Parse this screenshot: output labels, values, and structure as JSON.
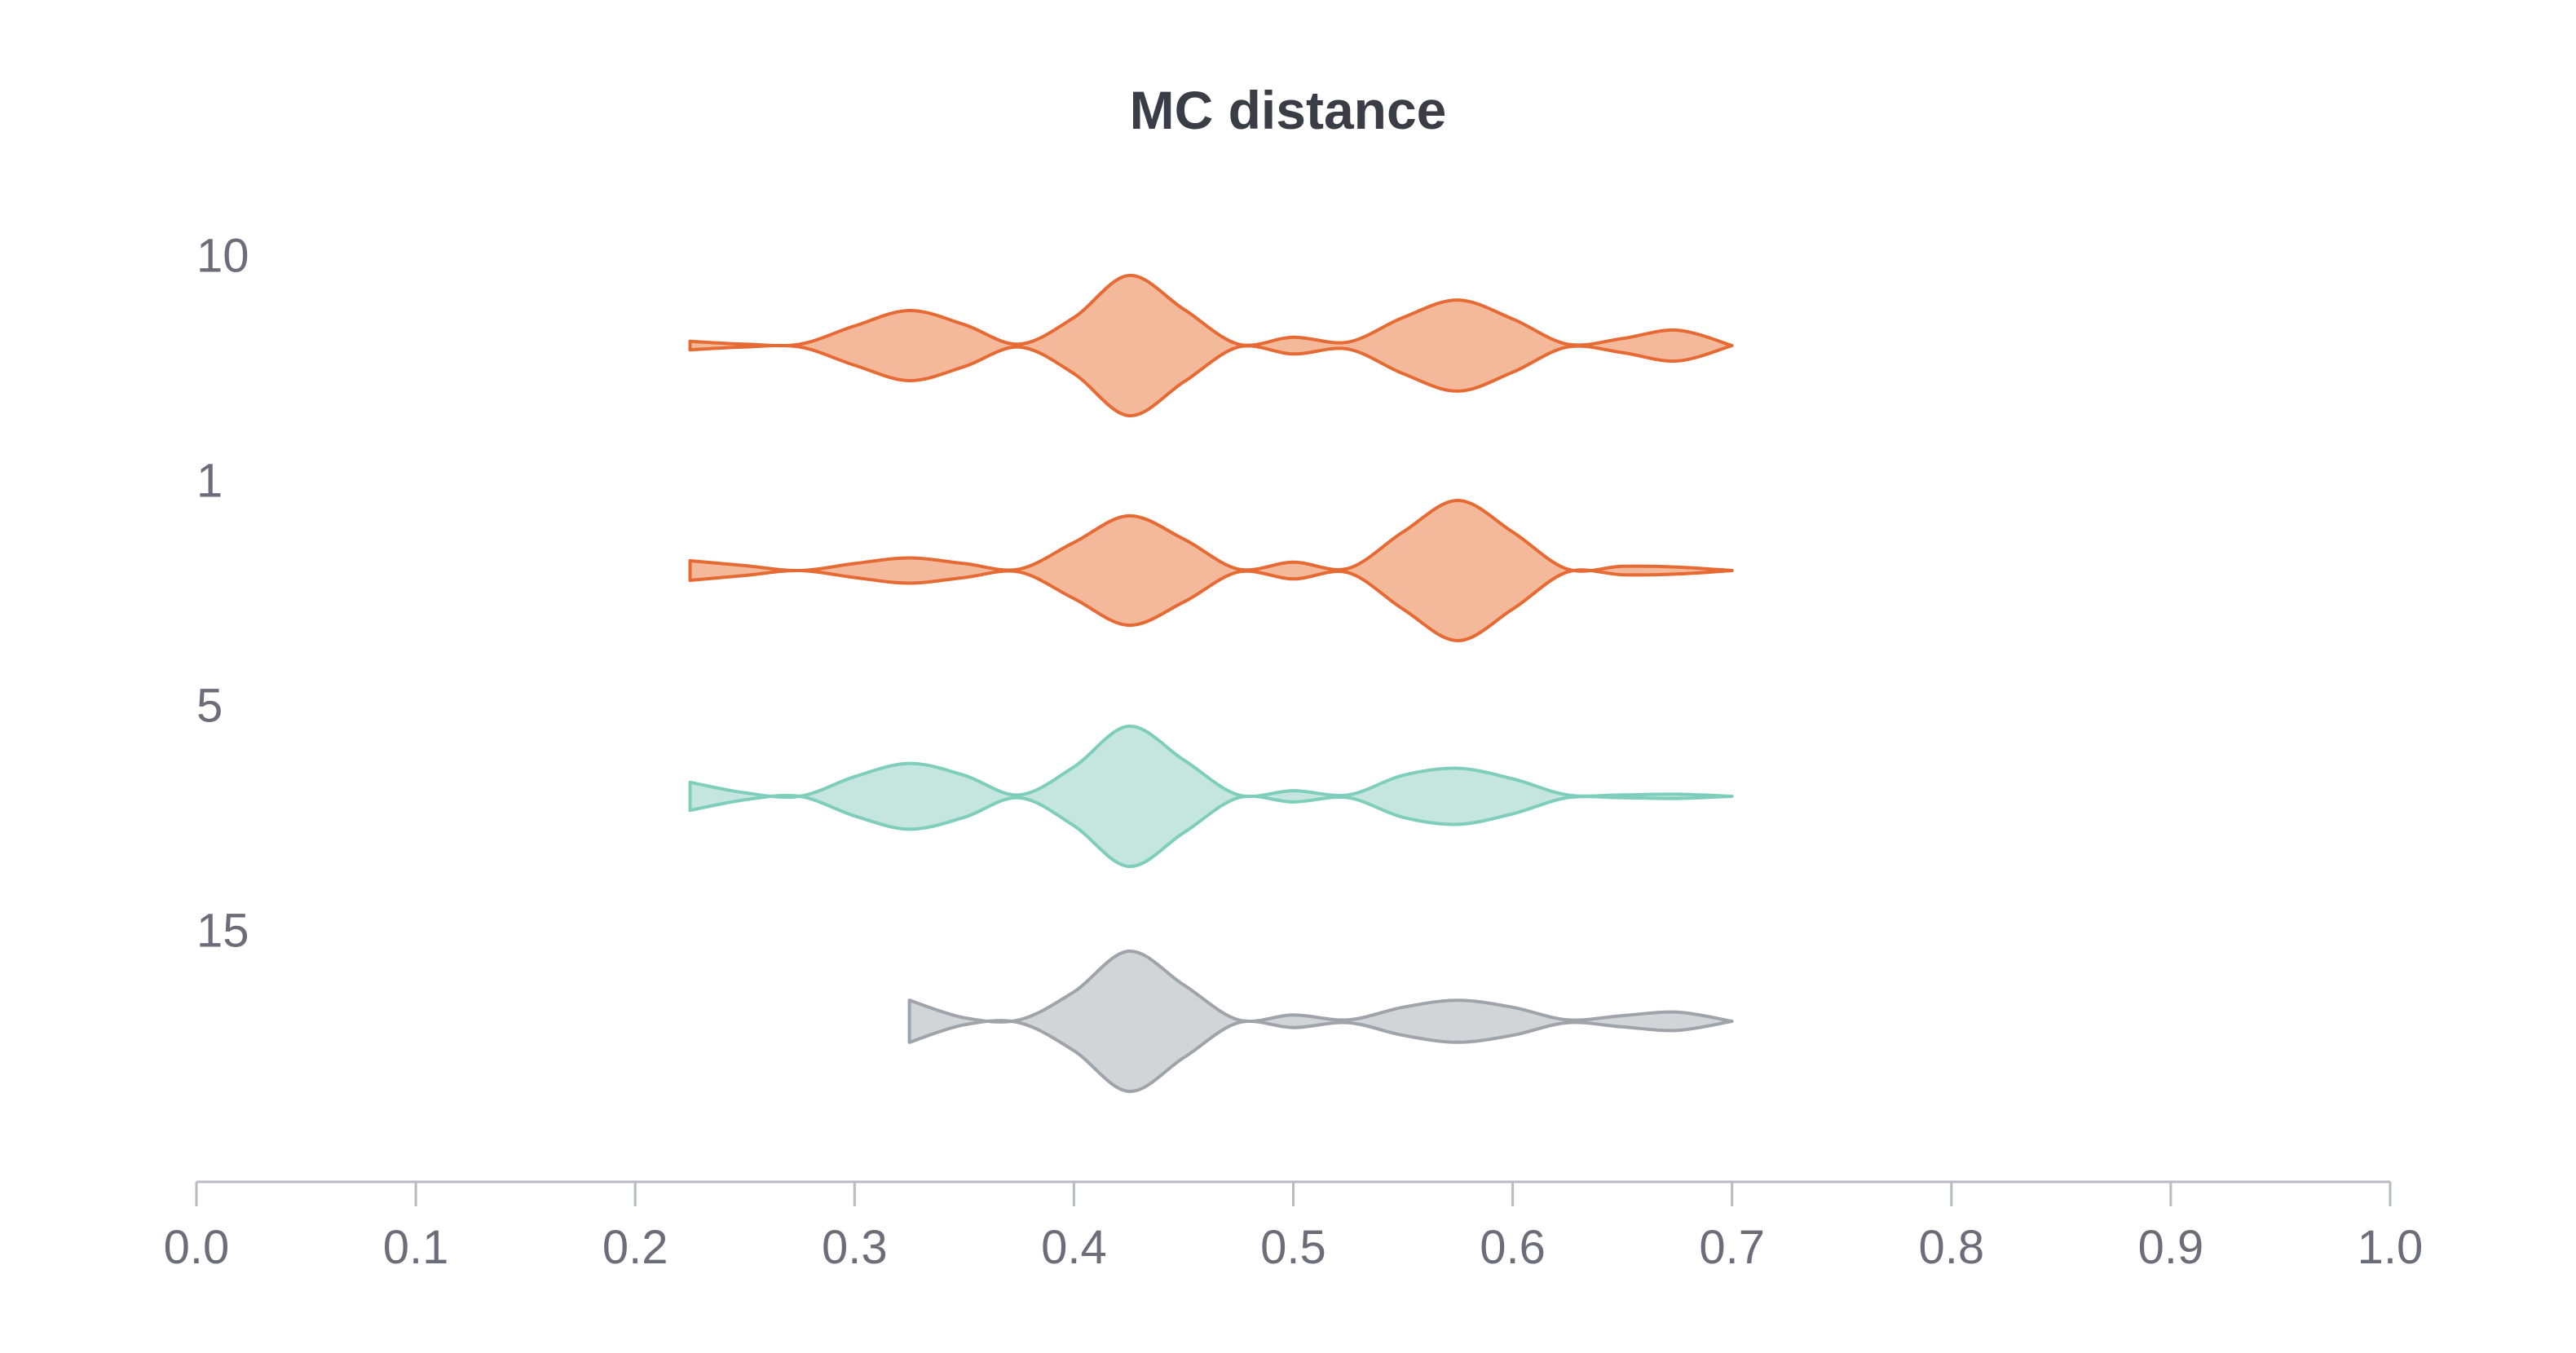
{
  "chart_data": {
    "type": "violin",
    "title": "MC distance",
    "xlabel": "",
    "ylabel": "",
    "xlim": [
      0.0,
      1.0
    ],
    "x_ticks": [
      "0.0",
      "0.1",
      "0.2",
      "0.3",
      "0.4",
      "0.5",
      "0.6",
      "0.7",
      "0.8",
      "0.9",
      "1.0"
    ],
    "x_tick_values": [
      0.0,
      0.1,
      0.2,
      0.3,
      0.4,
      0.5,
      0.6,
      0.7,
      0.8,
      0.9,
      1.0
    ],
    "categories": [
      "10",
      "1",
      "5",
      "15"
    ],
    "series": [
      {
        "label": "10",
        "color_fill": "#f4b99b",
        "color_stroke": "#e66a33",
        "density_x": [
          0.225,
          0.25,
          0.275,
          0.3,
          0.325,
          0.35,
          0.375,
          0.4,
          0.425,
          0.45,
          0.475,
          0.5,
          0.525,
          0.55,
          0.575,
          0.6,
          0.625,
          0.65,
          0.675,
          0.7
        ],
        "density": [
          0.06,
          0.02,
          0.02,
          0.28,
          0.5,
          0.3,
          0.02,
          0.4,
          1.0,
          0.52,
          0.02,
          0.12,
          0.05,
          0.4,
          0.65,
          0.38,
          0.02,
          0.1,
          0.22,
          0.0
        ]
      },
      {
        "label": "1",
        "color_fill": "#f4b99b",
        "color_stroke": "#e66a33",
        "density_x": [
          0.225,
          0.25,
          0.275,
          0.3,
          0.325,
          0.35,
          0.375,
          0.4,
          0.425,
          0.45,
          0.475,
          0.5,
          0.525,
          0.55,
          0.575,
          0.6,
          0.625,
          0.65,
          0.675,
          0.7
        ],
        "density": [
          0.14,
          0.07,
          0.0,
          0.1,
          0.18,
          0.1,
          0.02,
          0.4,
          0.78,
          0.45,
          0.02,
          0.12,
          0.03,
          0.55,
          1.0,
          0.55,
          0.02,
          0.06,
          0.05,
          0.0
        ]
      },
      {
        "label": "5",
        "color_fill": "#c4e6de",
        "color_stroke": "#7fcdbb",
        "density_x": [
          0.225,
          0.25,
          0.275,
          0.3,
          0.325,
          0.35,
          0.375,
          0.4,
          0.425,
          0.45,
          0.475,
          0.5,
          0.525,
          0.55,
          0.575,
          0.6,
          0.625,
          0.65,
          0.675,
          0.7
        ],
        "density": [
          0.2,
          0.05,
          0.0,
          0.28,
          0.47,
          0.3,
          0.02,
          0.42,
          1.0,
          0.52,
          0.02,
          0.08,
          0.02,
          0.3,
          0.4,
          0.25,
          0.02,
          0.02,
          0.03,
          0.0
        ]
      },
      {
        "label": "15",
        "color_fill": "#d2d5d8",
        "color_stroke": "#9fa4aa",
        "density_x": [
          0.325,
          0.35,
          0.375,
          0.4,
          0.425,
          0.45,
          0.475,
          0.5,
          0.525,
          0.55,
          0.575,
          0.6,
          0.625,
          0.65,
          0.675,
          0.7
        ],
        "density": [
          0.3,
          0.05,
          0.02,
          0.42,
          1.0,
          0.52,
          0.02,
          0.09,
          0.02,
          0.2,
          0.3,
          0.2,
          0.02,
          0.08,
          0.13,
          0.0
        ]
      }
    ],
    "grid": false,
    "legend": "none"
  }
}
